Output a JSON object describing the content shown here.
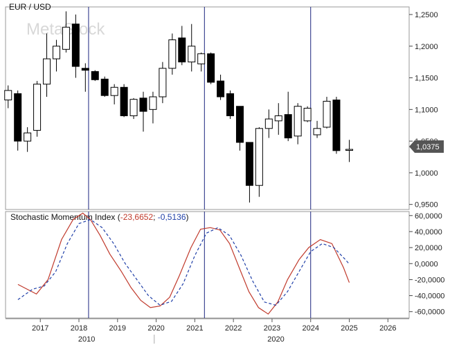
{
  "chart_data": [
    {
      "type": "candlestick",
      "title": "EUR / USD",
      "watermark": "MetaStock",
      "last_price_label": "1,0375",
      "y_axis_ticks": [
        "1,2500",
        "1,2000",
        "1,1500",
        "1,1000",
        "1,0500",
        "1,0000",
        "0,9500"
      ],
      "y_tick_values": [
        1.25,
        1.2,
        1.15,
        1.1,
        1.05,
        1.0,
        0.95
      ],
      "ylim": [
        0.942,
        1.262
      ],
      "up_color": "#ffffff",
      "down_color": "#000000",
      "x": [
        2016.667,
        2017.0,
        2017.333,
        2017.667,
        2018.0,
        2018.25,
        2018.5,
        2018.75,
        2019.0,
        2019.25,
        2019.5,
        2019.75,
        2020.0,
        2020.25,
        2020.5,
        2020.75,
        2021.0,
        2021.25,
        2021.5,
        2021.75,
        2022.0,
        2022.25,
        2022.5,
        2022.75,
        2023.0,
        2023.25,
        2023.5,
        2023.75,
        2024.0,
        2024.25,
        2024.5,
        2024.75,
        2025.0
      ],
      "candles": [
        {
          "o": 1.115,
          "h": 1.138,
          "l": 1.102,
          "c": 1.13
        },
        {
          "o": 1.125,
          "h": 1.13,
          "l": 1.035,
          "c": 1.05
        },
        {
          "o": 1.05,
          "h": 1.072,
          "l": 1.033,
          "c": 1.063
        },
        {
          "o": 1.067,
          "h": 1.145,
          "l": 1.057,
          "c": 1.14
        },
        {
          "o": 1.14,
          "h": 1.22,
          "l": 1.12,
          "c": 1.18
        },
        {
          "o": 1.18,
          "h": 1.21,
          "l": 1.16,
          "c": 1.2
        },
        {
          "o": 1.195,
          "h": 1.255,
          "l": 1.19,
          "c": 1.23
        },
        {
          "o": 1.235,
          "h": 1.25,
          "l": 1.15,
          "c": 1.168
        },
        {
          "o": 1.165,
          "h": 1.173,
          "l": 1.128,
          "c": 1.162
        },
        {
          "o": 1.16,
          "h": 1.162,
          "l": 1.145,
          "c": 1.147
        },
        {
          "o": 1.148,
          "h": 1.152,
          "l": 1.12,
          "c": 1.122
        },
        {
          "o": 1.122,
          "h": 1.14,
          "l": 1.108,
          "c": 1.135
        },
        {
          "o": 1.135,
          "h": 1.14,
          "l": 1.088,
          "c": 1.09
        },
        {
          "o": 1.09,
          "h": 1.118,
          "l": 1.085,
          "c": 1.116
        },
        {
          "o": 1.118,
          "h": 1.128,
          "l": 1.065,
          "c": 1.097
        },
        {
          "o": 1.1,
          "h": 1.128,
          "l": 1.078,
          "c": 1.12
        },
        {
          "o": 1.12,
          "h": 1.175,
          "l": 1.11,
          "c": 1.165
        },
        {
          "o": 1.165,
          "h": 1.22,
          "l": 1.155,
          "c": 1.21
        },
        {
          "o": 1.213,
          "h": 1.232,
          "l": 1.17,
          "c": 1.175
        },
        {
          "o": 1.175,
          "h": 1.235,
          "l": 1.16,
          "c": 1.2
        },
        {
          "o": 1.172,
          "h": 1.19,
          "l": 1.16,
          "c": 1.188
        },
        {
          "o": 1.188,
          "h": 1.19,
          "l": 1.14,
          "c": 1.143
        },
        {
          "o": 1.145,
          "h": 1.155,
          "l": 1.115,
          "c": 1.12
        },
        {
          "o": 1.125,
          "h": 1.13,
          "l": 1.085,
          "c": 1.09
        },
        {
          "o": 1.105,
          "h": 1.105,
          "l": 1.035,
          "c": 1.048
        },
        {
          "o": 1.048,
          "h": 1.048,
          "l": 0.953,
          "c": 0.98
        },
        {
          "o": 0.98,
          "h": 1.072,
          "l": 0.962,
          "c": 1.07
        },
        {
          "o": 1.07,
          "h": 1.1,
          "l": 1.055,
          "c": 1.085
        },
        {
          "o": 1.082,
          "h": 1.11,
          "l": 1.06,
          "c": 1.09
        },
        {
          "o": 1.092,
          "h": 1.128,
          "l": 1.05,
          "c": 1.055
        },
        {
          "o": 1.058,
          "h": 1.11,
          "l": 1.045,
          "c": 1.105
        },
        {
          "o": 1.082,
          "h": 1.105,
          "l": 1.08,
          "c": 1.102
        },
        {
          "o": 1.06,
          "h": 1.082,
          "l": 1.055,
          "c": 1.07
        },
        {
          "o": 1.072,
          "h": 1.12,
          "l": 1.07,
          "c": 1.113
        },
        {
          "o": 1.115,
          "h": 1.12,
          "l": 1.03,
          "c": 1.035
        },
        {
          "o": 1.037,
          "h": 1.052,
          "l": 1.017,
          "c": 1.037
        }
      ],
      "candle_x": [
        2016.167,
        2016.417,
        2016.667,
        2016.917,
        2017.167,
        2017.417,
        2017.667,
        2017.917,
        2018.167,
        2018.417,
        2018.667,
        2018.917,
        2019.167,
        2019.417,
        2019.667,
        2019.917,
        2020.167,
        2020.417,
        2020.667,
        2020.917,
        2021.167,
        2021.417,
        2021.667,
        2021.917,
        2022.167,
        2022.417,
        2022.667,
        2022.917,
        2023.167,
        2023.417,
        2023.667,
        2023.917,
        2024.167,
        2024.417,
        2024.667,
        2025.0
      ]
    },
    {
      "type": "line",
      "title": "Stochastic Momentum Index",
      "legend_values": [
        "-23,6652",
        "-0,5136"
      ],
      "y_axis_ticks": [
        "60,0000",
        "40,0000",
        "20,0000",
        "0,0000",
        "-20,0000",
        "-40,0000",
        "-60,0000"
      ],
      "y_tick_values": [
        60,
        40,
        20,
        0,
        -20,
        -40,
        -60
      ],
      "ylim": [
        -68,
        65
      ],
      "series": [
        {
          "color": "#c0392b",
          "dash": "solid",
          "x": [
            2016.42,
            2016.9,
            2017.2,
            2017.55,
            2017.85,
            2018.1,
            2018.3,
            2018.55,
            2018.8,
            2019.1,
            2019.35,
            2019.6,
            2019.85,
            2020.1,
            2020.35,
            2020.6,
            2020.9,
            2021.15,
            2021.4,
            2021.65,
            2021.9,
            2022.15,
            2022.4,
            2022.65,
            2022.9,
            2023.15,
            2023.4,
            2023.7,
            2023.95,
            2024.25,
            2024.55,
            2024.85,
            2025.0
          ],
          "y": [
            -26,
            -38,
            -20,
            30,
            55,
            63,
            55,
            35,
            12,
            -10,
            -30,
            -46,
            -55,
            -53,
            -42,
            -15,
            20,
            43,
            45,
            42,
            25,
            -5,
            -35,
            -55,
            -63,
            -48,
            -20,
            5,
            20,
            30,
            25,
            -5,
            -23.67
          ]
        },
        {
          "color": "#1f3fa8",
          "dash": "dashed",
          "x": [
            2016.42,
            2016.8,
            2017.1,
            2017.4,
            2017.7,
            2018.0,
            2018.3,
            2018.6,
            2018.9,
            2019.2,
            2019.5,
            2019.8,
            2020.1,
            2020.4,
            2020.7,
            2021.0,
            2021.3,
            2021.6,
            2021.9,
            2022.2,
            2022.5,
            2022.8,
            2023.1,
            2023.4,
            2023.7,
            2024.0,
            2024.3,
            2024.6,
            2024.9,
            2025.0
          ],
          "y": [
            -45,
            -32,
            -28,
            -10,
            25,
            50,
            55,
            45,
            25,
            0,
            -20,
            -40,
            -52,
            -47,
            -25,
            10,
            38,
            45,
            35,
            10,
            -22,
            -48,
            -52,
            -35,
            -10,
            15,
            25,
            20,
            5,
            -0.51
          ]
        }
      ]
    }
  ],
  "x_axis": {
    "year_labels": [
      "2017",
      "2018",
      "2019",
      "2020",
      "2021",
      "2022",
      "2023",
      "2024",
      "2025",
      "2026"
    ],
    "year_values": [
      2017,
      2018,
      2019,
      2020,
      2021,
      2022,
      2023,
      2024,
      2025,
      2026
    ],
    "xlim": [
      2016.1,
      2026.55
    ],
    "decade_labels": [
      "2010",
      "2020"
    ],
    "decade_values": [
      2018.2,
      2023.1
    ]
  },
  "vertical_markers": [
    2018.25,
    2021.25,
    2024.0
  ],
  "colors": {
    "marker_line": "#1a237e",
    "grid_border": "#888888",
    "price_tag_bg": "#555555",
    "price_tag_text": "#ffffff"
  }
}
